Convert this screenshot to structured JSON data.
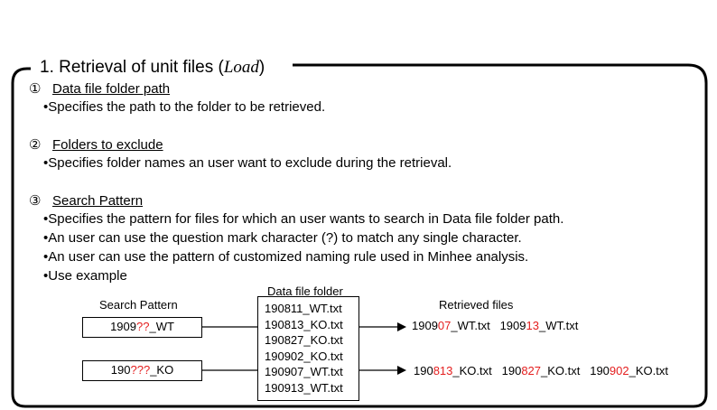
{
  "title": {
    "prefix": "1. Retrieval of unit files (",
    "italic": "Load",
    "suffix": ")"
  },
  "sections": [
    {
      "num": "①",
      "heading": "Data file folder path",
      "bullets": [
        "•Specifies the path to the folder to be retrieved."
      ]
    },
    {
      "num": "②",
      "heading": "Folders to exclude",
      "bullets": [
        "•Specifies folder names an user want to exclude during the retrieval."
      ]
    },
    {
      "num": "③",
      "heading": "Search Pattern",
      "bullets": [
        "•Specifies the pattern for files for which an user wants to search in Data file folder path.",
        "•An user can use the question mark character (?) to match any single character.",
        "•An user can use the pattern of customized naming rule used in Minhee analysis.",
        "•Use example"
      ]
    }
  ],
  "example": {
    "search_pattern_label": "Search Pattern",
    "data_folder_label": "Data file folder",
    "retrieved_label": "Retrieved files",
    "pattern1": {
      "prefix": "1909",
      "wild": "??",
      "suffix": "_WT"
    },
    "pattern2": {
      "prefix": "190",
      "wild": "???",
      "suffix": "_KO"
    },
    "folder_files": [
      "190811_WT.txt",
      "190813_KO.txt",
      "190827_KO.txt",
      "190902_KO.txt",
      "190907_WT.txt",
      "190913_WT.txt"
    ],
    "result1": [
      {
        "prefix": "1909",
        "match": "07",
        "suffix": "_WT.txt"
      },
      {
        "prefix": "1909",
        "match": "13",
        "suffix": "_WT.txt"
      }
    ],
    "result2": [
      {
        "prefix": "190",
        "match": "813",
        "suffix": "_KO.txt"
      },
      {
        "prefix": "190",
        "match": "827",
        "suffix": "_KO.txt"
      },
      {
        "prefix": "190",
        "match": "902",
        "suffix": "_KO.txt"
      }
    ]
  },
  "colors": {
    "wildcard": "#e41e1e",
    "border": "#000000"
  }
}
